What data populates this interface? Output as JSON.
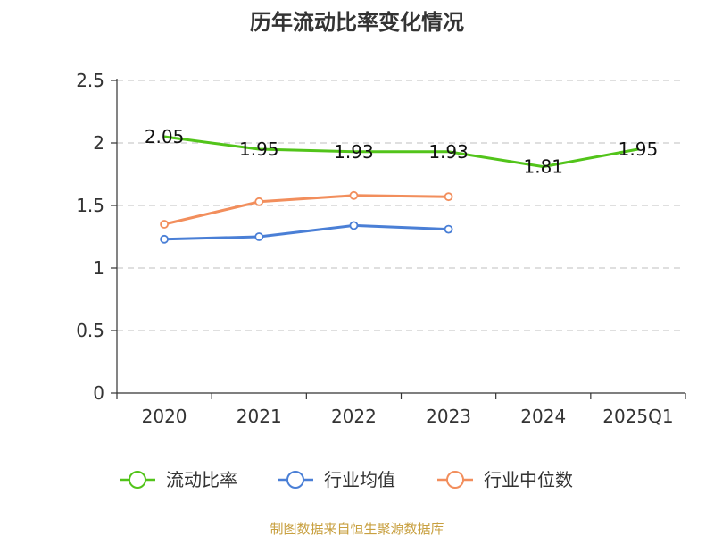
{
  "chart_data": {
    "type": "line",
    "title": "历年流动比率变化情况",
    "categories": [
      "2020",
      "2021",
      "2022",
      "2023",
      "2024",
      "2025Q1"
    ],
    "ylim": [
      0,
      2.5
    ],
    "yticks": [
      "0",
      "0.5",
      "1",
      "1.5",
      "2",
      "2.5"
    ],
    "grid": true,
    "legend_position": "bottom",
    "series": [
      {
        "name": "流动比率",
        "color": "#52c41a",
        "values": [
          2.05,
          1.95,
          1.93,
          1.93,
          1.81,
          1.95
        ],
        "labels": [
          "2.05",
          "1.95",
          "1.93",
          "1.93",
          "1.81",
          "1.95"
        ],
        "markers": false
      },
      {
        "name": "行业均值",
        "color": "#4a7fd6",
        "values": [
          1.23,
          1.25,
          1.34,
          1.31,
          null,
          null
        ],
        "markers": true
      },
      {
        "name": "行业中位数",
        "color": "#f28e5c",
        "values": [
          1.35,
          1.53,
          1.58,
          1.57,
          null,
          null
        ],
        "markers": true
      }
    ]
  },
  "source": {
    "text": "制图数据来自恒生聚源数据库",
    "color": "#c8a040"
  }
}
